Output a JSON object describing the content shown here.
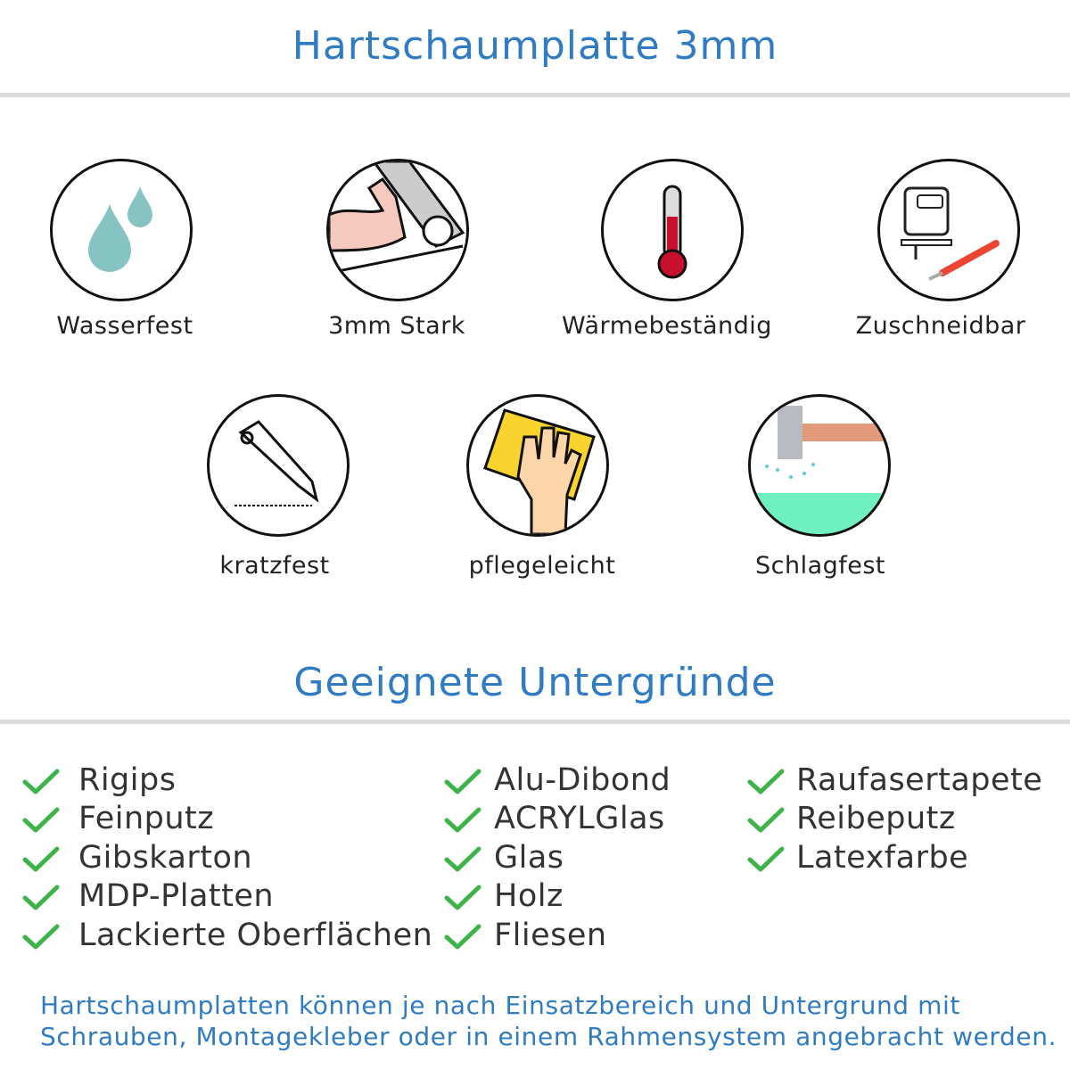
{
  "title": "Hartschaumplatte 3mm",
  "features": [
    {
      "label": "Wasserfest",
      "icon": "water-drops-icon"
    },
    {
      "label": "3mm Stark",
      "icon": "strong-arm-icon"
    },
    {
      "label": "Wärmebeständig",
      "icon": "thermometer-icon"
    },
    {
      "label": "Zuschneidbar",
      "icon": "jigsaw-cutter-icon"
    },
    {
      "label": "kratzfest",
      "icon": "cutter-knife-icon"
    },
    {
      "label": "pflegeleicht",
      "icon": "hand-sponge-icon"
    },
    {
      "label": "Schlagfest",
      "icon": "hammer-icon"
    }
  ],
  "subtitle": "Geeignete Untergründe",
  "surfaces": {
    "col1": [
      "Rigips",
      "Feinputz",
      "Gibskarton",
      "MDP-Platten",
      "Lackierte Oberflächen"
    ],
    "col2": [
      "Alu-Dibond",
      "ACRYLGlas",
      "Glas",
      "Holz",
      "Fliesen"
    ],
    "col3": [
      "Raufasertapete",
      "Reibeputz",
      "Latexfarbe"
    ]
  },
  "footer": [
    "Hartschaumplatten können je nach Einsatzbereich und Untergrund mit",
    "Schrauben, Montagekleber oder in einem Rahmensystem angebracht werden."
  ],
  "colors": {
    "accent": "#2f7bc4",
    "check": "#3db34a"
  }
}
